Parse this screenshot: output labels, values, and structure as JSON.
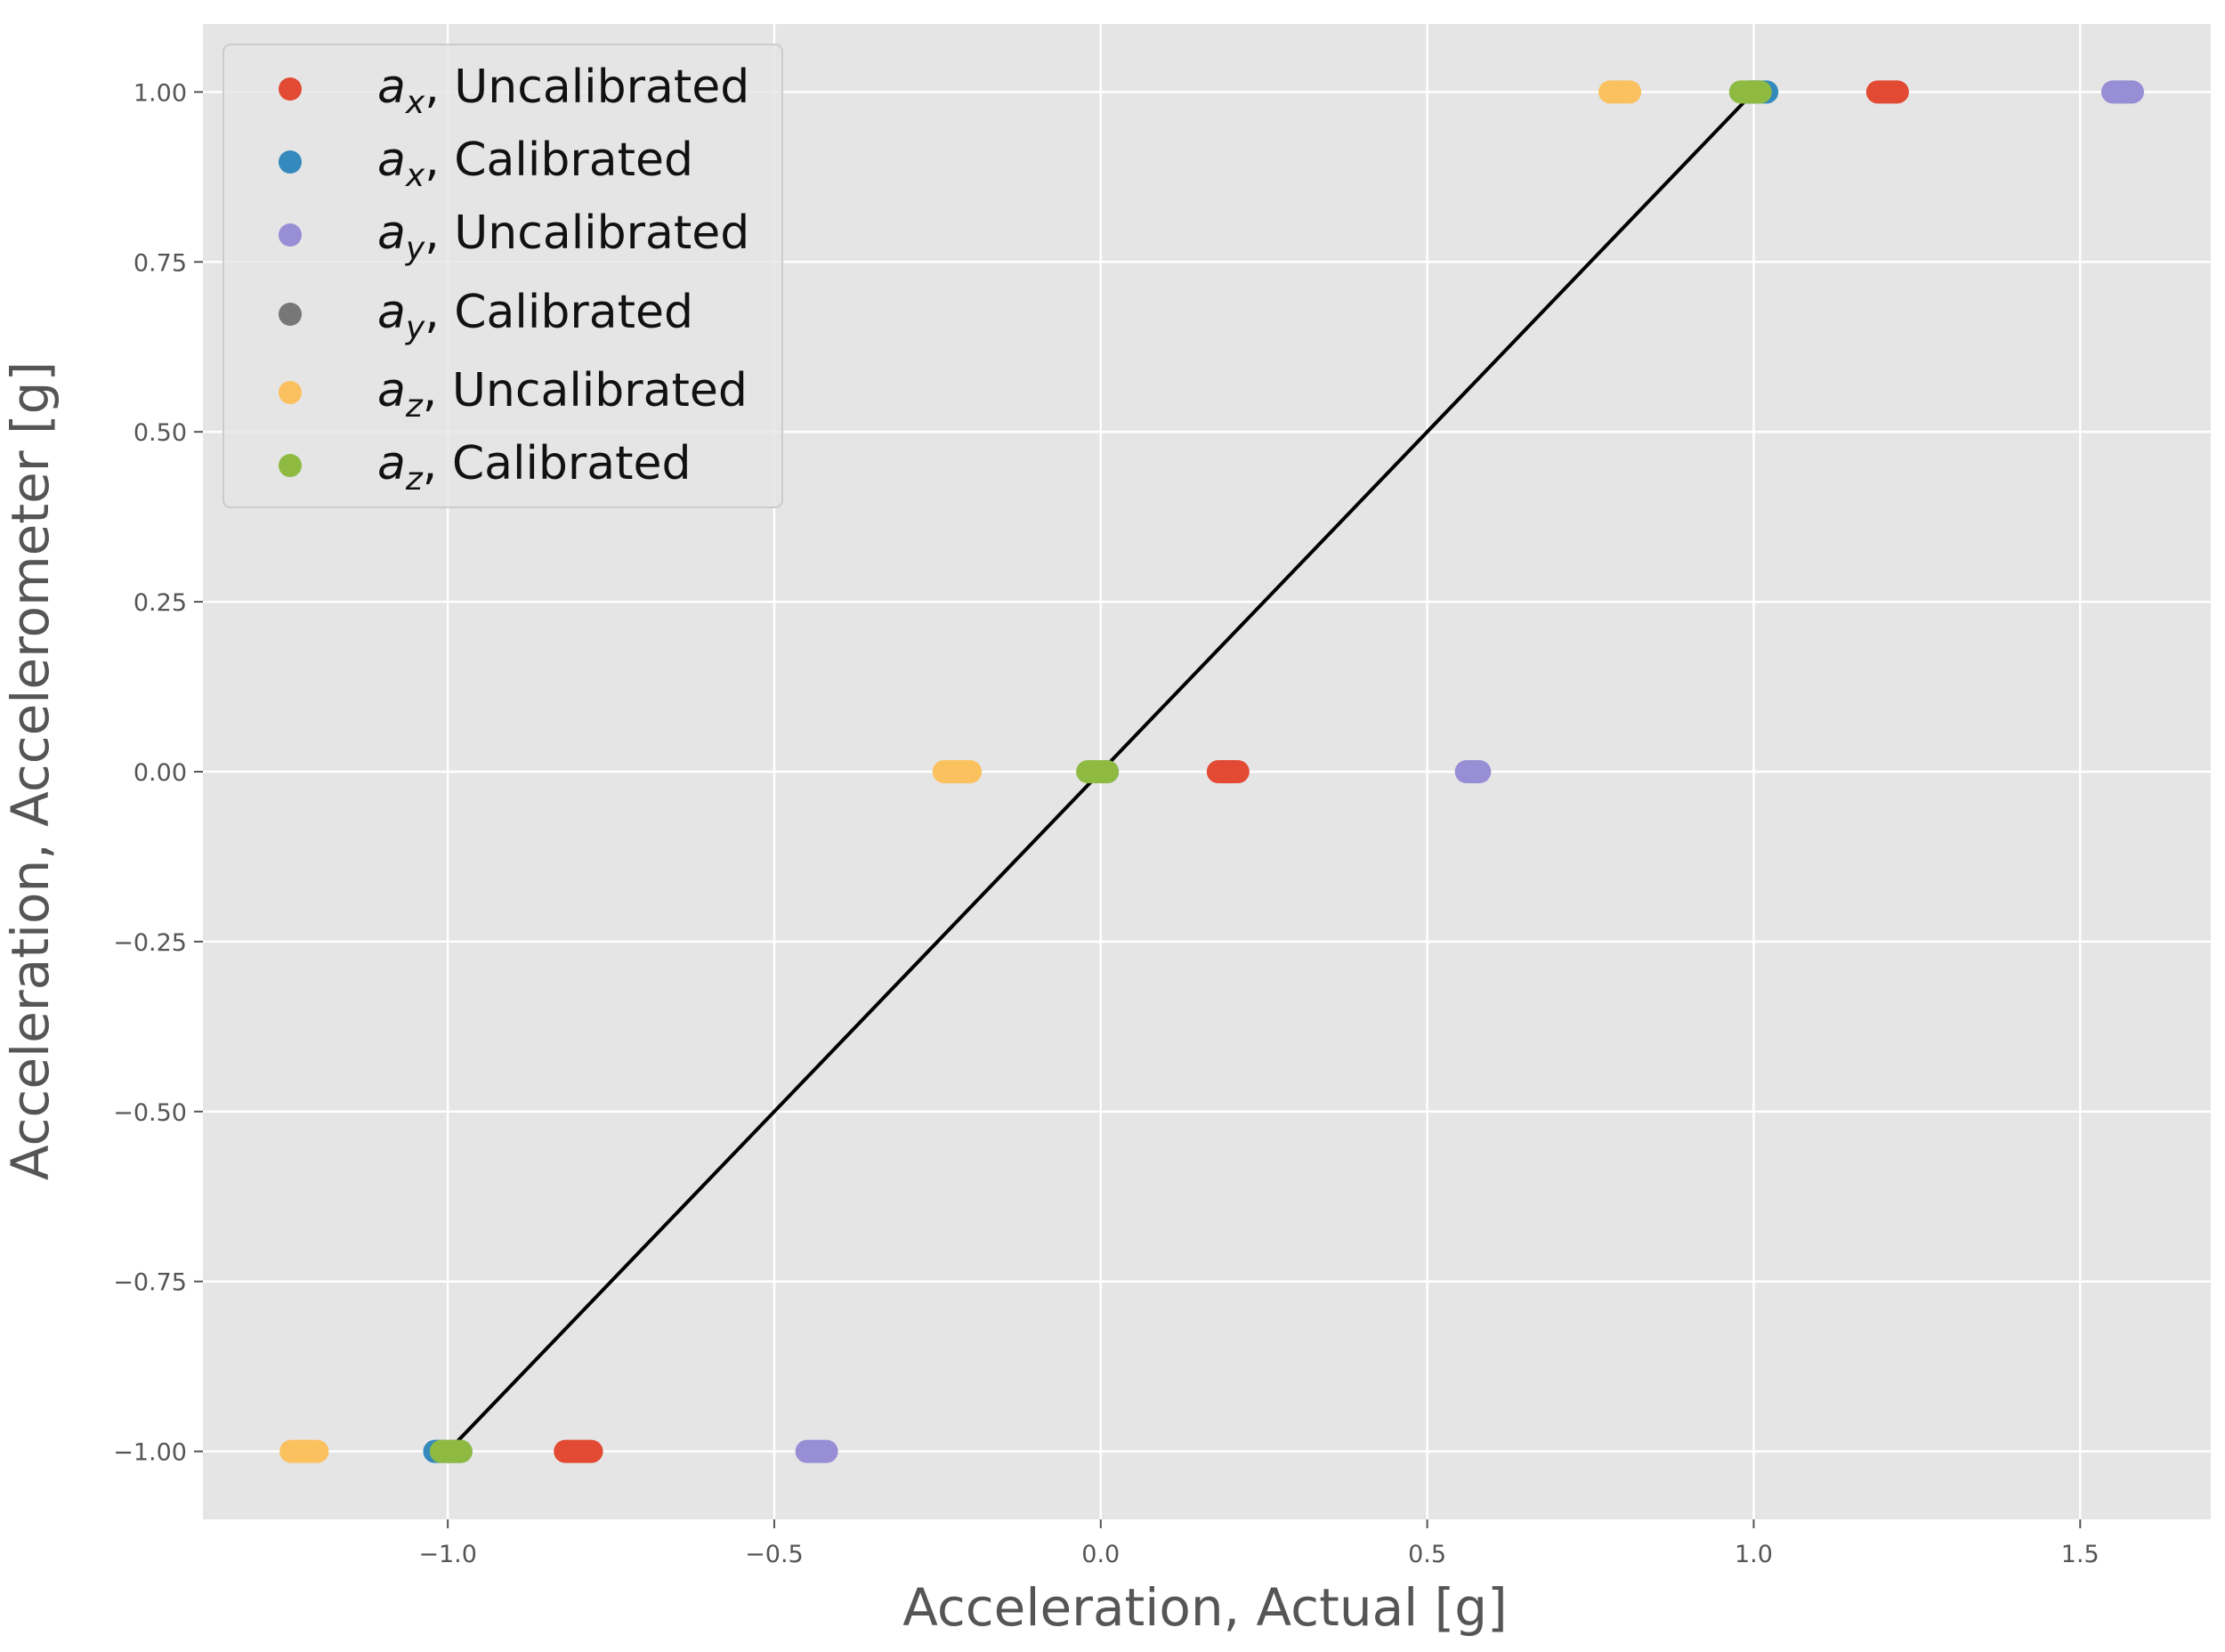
{
  "chart_data": {
    "type": "scatter",
    "xlabel": "Acceleration, Actual [g]",
    "ylabel": "Acceleration, Accelerometer [g]",
    "xlim": [
      -1.375,
      1.7
    ],
    "ylim": [
      -1.1,
      1.1
    ],
    "x_ticks": [
      -1.0,
      -0.5,
      0.0,
      0.5,
      1.0,
      1.5
    ],
    "x_tick_labels": [
      "−1.0",
      "−0.5",
      "0.0",
      "0.5",
      "1.0",
      "1.5"
    ],
    "y_ticks": [
      1.0,
      0.75,
      0.5,
      0.25,
      0.0,
      -0.25,
      -0.5,
      -0.75,
      -1.0
    ],
    "y_tick_labels": [
      "1.00",
      "0.75",
      "0.50",
      "0.25",
      "0.00",
      "−0.25",
      "−0.50",
      "−0.75",
      "−1.00"
    ],
    "grid": true,
    "legend_position": "top-left",
    "reference_line": {
      "x": [
        -1.0,
        1.0
      ],
      "y": [
        -1.0,
        1.0
      ],
      "color": "#000000"
    },
    "series": [
      {
        "legend_main": "a",
        "legend_sub": "x",
        "legend_suffix": ", Uncalibrated",
        "color": "#E24A33",
        "points": [
          {
            "x_min": -0.82,
            "x_max": -0.78,
            "y": -1.0
          },
          {
            "x_min": 0.18,
            "x_max": 0.21,
            "y": 0.0
          },
          {
            "x_min": 1.19,
            "x_max": 1.22,
            "y": 1.0
          }
        ]
      },
      {
        "legend_main": "a",
        "legend_sub": "x",
        "legend_suffix": ", Calibrated",
        "color": "#348ABD",
        "points": [
          {
            "x_min": -1.02,
            "x_max": -0.98,
            "y": -1.0
          },
          {
            "x_min": -0.01,
            "x_max": 0.01,
            "y": 0.0
          },
          {
            "x_min": 0.99,
            "x_max": 1.02,
            "y": 1.0
          }
        ]
      },
      {
        "legend_main": "a",
        "legend_sub": "y",
        "legend_suffix": ", Uncalibrated",
        "color": "#988ED5",
        "points": [
          {
            "x_min": -0.45,
            "x_max": -0.42,
            "y": -1.0
          },
          {
            "x_min": 0.56,
            "x_max": 0.58,
            "y": 0.0
          },
          {
            "x_min": 1.55,
            "x_max": 1.58,
            "y": 1.0
          }
        ]
      },
      {
        "legend_main": "a",
        "legend_sub": "y",
        "legend_suffix": ", Calibrated",
        "color": "#777777",
        "points": [
          {
            "x_min": -1.0,
            "x_max": -0.99,
            "y": -1.0
          },
          {
            "x_min": -0.005,
            "x_max": 0.005,
            "y": 0.0
          },
          {
            "x_min": 0.995,
            "x_max": 1.005,
            "y": 1.0
          }
        ]
      },
      {
        "legend_main": "a",
        "legend_sub": "z",
        "legend_suffix": ", Uncalibrated",
        "color": "#FBC15E",
        "points": [
          {
            "x_min": -1.24,
            "x_max": -1.2,
            "y": -1.0
          },
          {
            "x_min": -0.24,
            "x_max": -0.2,
            "y": 0.0
          },
          {
            "x_min": 0.78,
            "x_max": 0.81,
            "y": 1.0
          }
        ]
      },
      {
        "legend_main": "a",
        "legend_sub": "z",
        "legend_suffix": ", Calibrated",
        "color": "#8EBA42",
        "points": [
          {
            "x_min": -1.01,
            "x_max": -0.98,
            "y": -1.0
          },
          {
            "x_min": -0.02,
            "x_max": 0.01,
            "y": 0.0
          },
          {
            "x_min": 0.98,
            "x_max": 1.01,
            "y": 1.0
          }
        ]
      }
    ]
  }
}
